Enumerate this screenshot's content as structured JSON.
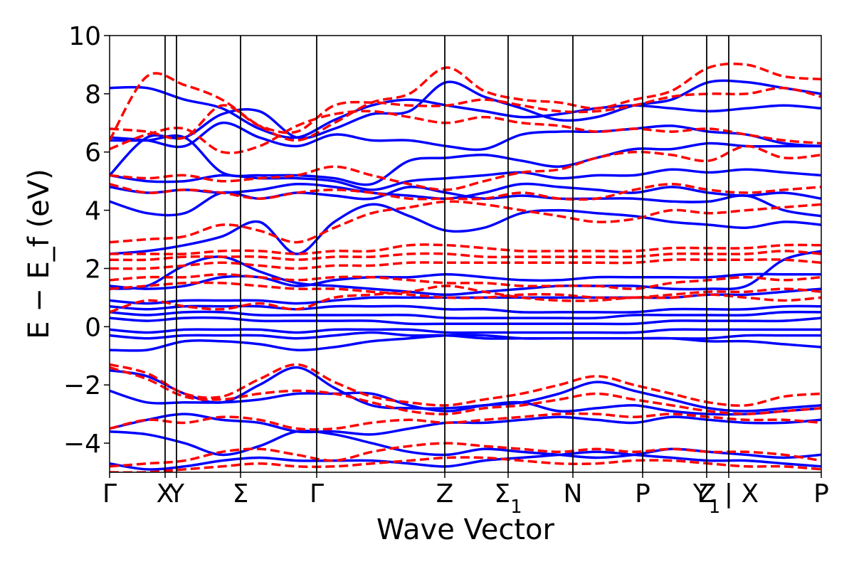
{
  "chart_data": {
    "type": "line",
    "xlabel": "Wave Vector",
    "ylabel": "E − E_f (eV)",
    "ylim": [
      -5,
      10
    ],
    "yticks": [
      -4,
      -2,
      0,
      2,
      4,
      6,
      8,
      10
    ],
    "ytick_labels": [
      "−4",
      "−2",
      "0",
      "2",
      "4",
      "6",
      "8",
      "10"
    ],
    "xlim": [
      0,
      1
    ],
    "grid": false,
    "legend": "none",
    "colors": {
      "solid": "#0000ff",
      "dashed": "#ff0000",
      "vline": "#000000"
    },
    "kpoints": [
      {
        "pos": 0.0,
        "label": "Γ"
      },
      {
        "pos": 0.078,
        "label": "X"
      },
      {
        "pos": 0.094,
        "label": "Y"
      },
      {
        "pos": 0.184,
        "label": "Σ"
      },
      {
        "pos": 0.291,
        "label": "Γ"
      },
      {
        "pos": 0.471,
        "label": "Z"
      },
      {
        "pos": 0.56,
        "label": "Σ",
        "sub": "1"
      },
      {
        "pos": 0.651,
        "label": "N"
      },
      {
        "pos": 0.749,
        "label": "P"
      },
      {
        "pos": 0.839,
        "label": "Y",
        "sub": "1"
      },
      {
        "pos": 0.87,
        "label": "Z | X"
      },
      {
        "pos": 1.0,
        "label": "P"
      }
    ],
    "series": [
      {
        "style": "solid",
        "bands": [
          [
            4.3,
            3.9,
            3.9,
            4.6,
            4.4,
            4.6,
            4.5,
            4.4,
            4.8,
            4.6,
            4.4,
            4.5,
            4.4,
            4.4,
            4.4,
            4.3,
            4.3,
            4.5,
            4.0,
            3.8
          ],
          [
            4.8,
            4.6,
            4.7,
            4.6,
            4.7,
            4.9,
            4.8,
            4.6,
            4.5,
            4.4,
            4.6,
            4.9,
            4.8,
            4.7,
            4.6,
            4.8,
            4.6,
            4.5,
            4.6,
            4.4
          ],
          [
            5.2,
            5.0,
            5.0,
            5.2,
            5.1,
            5.1,
            5.0,
            4.7,
            5.0,
            5.1,
            5.2,
            5.3,
            5.1,
            5.2,
            5.2,
            5.4,
            5.3,
            5.4,
            5.3,
            5.2
          ],
          [
            6.4,
            6.4,
            6.5,
            5.3,
            5.2,
            5.2,
            5.1,
            4.9,
            5.7,
            5.8,
            5.9,
            5.7,
            5.5,
            5.8,
            6.1,
            6.1,
            6.3,
            6.2,
            6.2,
            6.2
          ],
          [
            6.5,
            6.4,
            6.2,
            7.0,
            6.5,
            6.2,
            6.6,
            6.4,
            6.4,
            6.2,
            6.1,
            6.6,
            6.7,
            6.7,
            6.8,
            6.9,
            6.7,
            6.6,
            6.3,
            6.2
          ],
          [
            8.2,
            8.2,
            7.8,
            7.5,
            6.8,
            6.5,
            7.1,
            7.6,
            7.8,
            7.6,
            7.4,
            7.2,
            7.3,
            7.5,
            7.6,
            7.5,
            7.4,
            7.5,
            7.6,
            7.5
          ],
          [
            5.2,
            6.5,
            6.5,
            7.3,
            7.4,
            6.5,
            6.8,
            7.3,
            7.4,
            8.4,
            7.9,
            7.5,
            7.1,
            7.2,
            7.6,
            7.8,
            8.4,
            8.4,
            8.2,
            8.0
          ],
          [
            2.5,
            2.6,
            2.8,
            3.1,
            3.6,
            2.5,
            3.6,
            4.2,
            3.8,
            3.3,
            3.4,
            3.9,
            4.0,
            3.9,
            3.8,
            3.6,
            3.5,
            3.4,
            3.6,
            3.5
          ],
          [
            1.3,
            1.4,
            2.1,
            2.4,
            1.9,
            1.5,
            1.4,
            1.3,
            1.2,
            1.1,
            1.2,
            1.3,
            1.4,
            1.4,
            1.4,
            1.3,
            1.3,
            1.4,
            2.3,
            2.6
          ],
          [
            1.4,
            1.3,
            1.4,
            1.7,
            1.7,
            1.4,
            1.6,
            1.7,
            1.7,
            1.8,
            1.7,
            1.6,
            1.6,
            1.7,
            1.7,
            1.7,
            1.7,
            1.8,
            1.8,
            1.8
          ],
          [
            0.9,
            0.8,
            0.9,
            0.9,
            0.9,
            0.8,
            0.9,
            1.0,
            1.0,
            1.0,
            1.0,
            1.0,
            1.0,
            1.0,
            1.0,
            1.0,
            1.1,
            1.1,
            1.2,
            1.3
          ],
          [
            0.7,
            0.6,
            0.7,
            0.7,
            0.7,
            0.6,
            0.7,
            0.7,
            0.7,
            0.6,
            0.6,
            0.5,
            0.5,
            0.5,
            0.5,
            0.6,
            0.6,
            0.6,
            0.7,
            0.7
          ],
          [
            0.5,
            0.4,
            0.5,
            0.5,
            0.4,
            0.4,
            0.4,
            0.4,
            0.4,
            0.3,
            0.3,
            0.3,
            0.3,
            0.3,
            0.4,
            0.4,
            0.4,
            0.4,
            0.5,
            0.5
          ],
          [
            0.3,
            0.2,
            0.3,
            0.3,
            0.2,
            0.2,
            0.2,
            0.2,
            0.1,
            0.1,
            0.1,
            0.1,
            0.1,
            0.1,
            0.1,
            0.2,
            0.2,
            0.2,
            0.2,
            0.3
          ],
          [
            -0.1,
            -0.2,
            -0.1,
            -0.1,
            -0.1,
            -0.2,
            -0.1,
            -0.1,
            -0.1,
            -0.2,
            -0.2,
            -0.2,
            -0.2,
            -0.2,
            -0.2,
            -0.1,
            -0.1,
            -0.1,
            -0.1,
            -0.1
          ],
          [
            -0.3,
            -0.4,
            -0.3,
            -0.3,
            -0.3,
            -0.4,
            -0.3,
            -0.2,
            -0.3,
            -0.3,
            -0.4,
            -0.4,
            -0.4,
            -0.4,
            -0.4,
            -0.4,
            -0.4,
            -0.3,
            -0.3,
            -0.3
          ],
          [
            -0.8,
            -0.8,
            -0.5,
            -0.5,
            -0.6,
            -0.8,
            -0.7,
            -0.5,
            -0.4,
            -0.3,
            -0.3,
            -0.4,
            -0.4,
            -0.4,
            -0.4,
            -0.4,
            -0.5,
            -0.5,
            -0.6,
            -0.7
          ],
          [
            -1.5,
            -1.7,
            -2.3,
            -2.6,
            -2.0,
            -1.4,
            -2.1,
            -2.7,
            -2.8,
            -2.8,
            -2.7,
            -2.6,
            -2.3,
            -1.9,
            -2.2,
            -2.5,
            -2.8,
            -2.9,
            -2.8,
            -2.7
          ],
          [
            -2.2,
            -2.6,
            -2.6,
            -2.6,
            -2.5,
            -2.3,
            -2.3,
            -2.3,
            -2.7,
            -2.9,
            -2.7,
            -2.6,
            -2.9,
            -2.8,
            -2.7,
            -2.9,
            -3.0,
            -3.0,
            -2.9,
            -2.8
          ],
          [
            -3.5,
            -3.2,
            -3.0,
            -3.2,
            -3.3,
            -3.6,
            -3.6,
            -3.7,
            -3.5,
            -3.3,
            -3.3,
            -3.2,
            -3.1,
            -3.2,
            -3.3,
            -3.1,
            -3.2,
            -3.3,
            -3.3,
            -3.2
          ],
          [
            -3.6,
            -3.7,
            -4.0,
            -4.4,
            -4.1,
            -3.6,
            -3.7,
            -4.0,
            -4.3,
            -4.4,
            -4.2,
            -4.3,
            -4.4,
            -4.5,
            -4.4,
            -4.2,
            -4.3,
            -4.4,
            -4.5,
            -4.4
          ],
          [
            -4.7,
            -4.9,
            -4.8,
            -4.6,
            -4.5,
            -4.6,
            -4.6,
            -4.6,
            -4.7,
            -4.8,
            -4.6,
            -4.5,
            -4.4,
            -4.3,
            -4.4,
            -4.5,
            -4.6,
            -4.6,
            -4.7,
            -4.8
          ]
        ]
      },
      {
        "style": "dashed",
        "bands": [
          [
            6.1,
            6.6,
            6.8,
            6.0,
            6.2,
            6.9,
            7.3,
            7.4,
            7.2,
            7.0,
            7.2,
            7.0,
            6.9,
            6.7,
            6.8,
            6.7,
            6.8,
            6.6,
            6.4,
            6.3
          ],
          [
            6.8,
            6.7,
            6.5,
            7.6,
            6.9,
            6.7,
            7.6,
            7.7,
            7.6,
            7.6,
            7.8,
            7.6,
            7.4,
            7.4,
            7.6,
            7.9,
            8.0,
            8.0,
            8.2,
            7.9
          ],
          [
            6.4,
            8.6,
            8.3,
            7.8,
            6.9,
            6.4,
            7.0,
            7.7,
            8.0,
            8.9,
            8.1,
            7.8,
            7.7,
            7.5,
            7.8,
            8.1,
            8.9,
            9.0,
            8.6,
            8.5
          ],
          [
            5.2,
            5.1,
            5.2,
            5.0,
            5.1,
            5.2,
            5.5,
            5.2,
            4.9,
            4.7,
            5.0,
            5.3,
            5.4,
            5.8,
            6.0,
            5.9,
            5.7,
            6.2,
            5.8,
            5.9
          ],
          [
            4.9,
            4.6,
            4.7,
            4.6,
            4.4,
            4.6,
            4.7,
            4.6,
            4.4,
            4.4,
            4.4,
            4.6,
            4.4,
            4.4,
            4.7,
            4.9,
            4.7,
            4.6,
            4.7,
            4.8
          ],
          [
            2.9,
            3.0,
            3.1,
            3.5,
            3.3,
            2.9,
            3.4,
            3.9,
            4.1,
            4.3,
            4.2,
            4.0,
            3.8,
            3.6,
            3.7,
            4.0,
            3.9,
            4.0,
            4.1,
            4.2
          ],
          [
            2.5,
            2.5,
            2.5,
            2.6,
            2.6,
            2.5,
            2.6,
            2.6,
            2.8,
            2.8,
            2.7,
            2.6,
            2.6,
            2.6,
            2.6,
            2.7,
            2.7,
            2.7,
            2.8,
            2.8
          ],
          [
            2.3,
            2.3,
            2.4,
            2.4,
            2.4,
            2.3,
            2.4,
            2.4,
            2.5,
            2.5,
            2.4,
            2.4,
            2.4,
            2.4,
            2.4,
            2.5,
            2.5,
            2.5,
            2.6,
            2.5
          ],
          [
            2.0,
            2.0,
            2.1,
            2.2,
            2.1,
            2.0,
            2.1,
            2.1,
            2.2,
            2.2,
            2.2,
            2.2,
            2.2,
            2.2,
            2.2,
            2.3,
            2.3,
            2.3,
            2.3,
            2.2
          ],
          [
            1.6,
            1.7,
            1.7,
            1.8,
            1.7,
            1.6,
            1.7,
            1.7,
            1.6,
            1.5,
            1.5,
            1.4,
            1.4,
            1.4,
            1.3,
            1.5,
            1.6,
            1.7,
            1.6,
            1.7
          ],
          [
            1.3,
            1.4,
            1.5,
            1.5,
            1.4,
            1.3,
            1.3,
            1.2,
            1.1,
            1.0,
            1.0,
            1.1,
            1.1,
            1.0,
            1.0,
            1.1,
            1.2,
            1.2,
            1.3,
            1.2
          ],
          [
            0.5,
            0.9,
            0.7,
            0.6,
            0.8,
            0.6,
            1.0,
            1.1,
            1.2,
            1.4,
            1.2,
            1.0,
            0.9,
            0.9,
            1.0,
            1.0,
            1.1,
            1.0,
            0.9,
            1.0
          ],
          [
            -1.3,
            -1.6,
            -2.3,
            -2.4,
            -1.8,
            -1.3,
            -1.9,
            -2.4,
            -2.6,
            -2.7,
            -2.5,
            -2.3,
            -2.0,
            -1.7,
            -2.0,
            -2.3,
            -2.6,
            -2.7,
            -2.4,
            -2.3
          ],
          [
            -1.4,
            -1.8,
            -2.4,
            -2.5,
            -2.3,
            -2.2,
            -2.3,
            -2.6,
            -2.9,
            -3.0,
            -2.8,
            -2.7,
            -2.5,
            -2.3,
            -2.5,
            -2.7,
            -2.9,
            -3.0,
            -2.9,
            -2.8
          ],
          [
            -3.5,
            -3.2,
            -3.3,
            -3.1,
            -3.2,
            -3.5,
            -3.5,
            -3.3,
            -3.2,
            -3.3,
            -3.2,
            -3.1,
            -3.0,
            -3.0,
            -3.1,
            -3.0,
            -3.1,
            -3.2,
            -3.2,
            -3.3
          ],
          [
            -4.8,
            -4.7,
            -4.6,
            -4.3,
            -4.2,
            -4.4,
            -4.6,
            -4.3,
            -4.1,
            -4.0,
            -4.1,
            -4.2,
            -4.3,
            -4.2,
            -4.3,
            -4.2,
            -4.3,
            -4.3,
            -4.4,
            -4.6
          ],
          [
            -5.0,
            -5.0,
            -4.9,
            -4.8,
            -4.7,
            -4.8,
            -4.8,
            -4.7,
            -4.6,
            -4.5,
            -4.5,
            -4.6,
            -4.7,
            -4.7,
            -4.6,
            -4.6,
            -4.7,
            -4.8,
            -4.8,
            -4.9
          ]
        ]
      }
    ]
  }
}
